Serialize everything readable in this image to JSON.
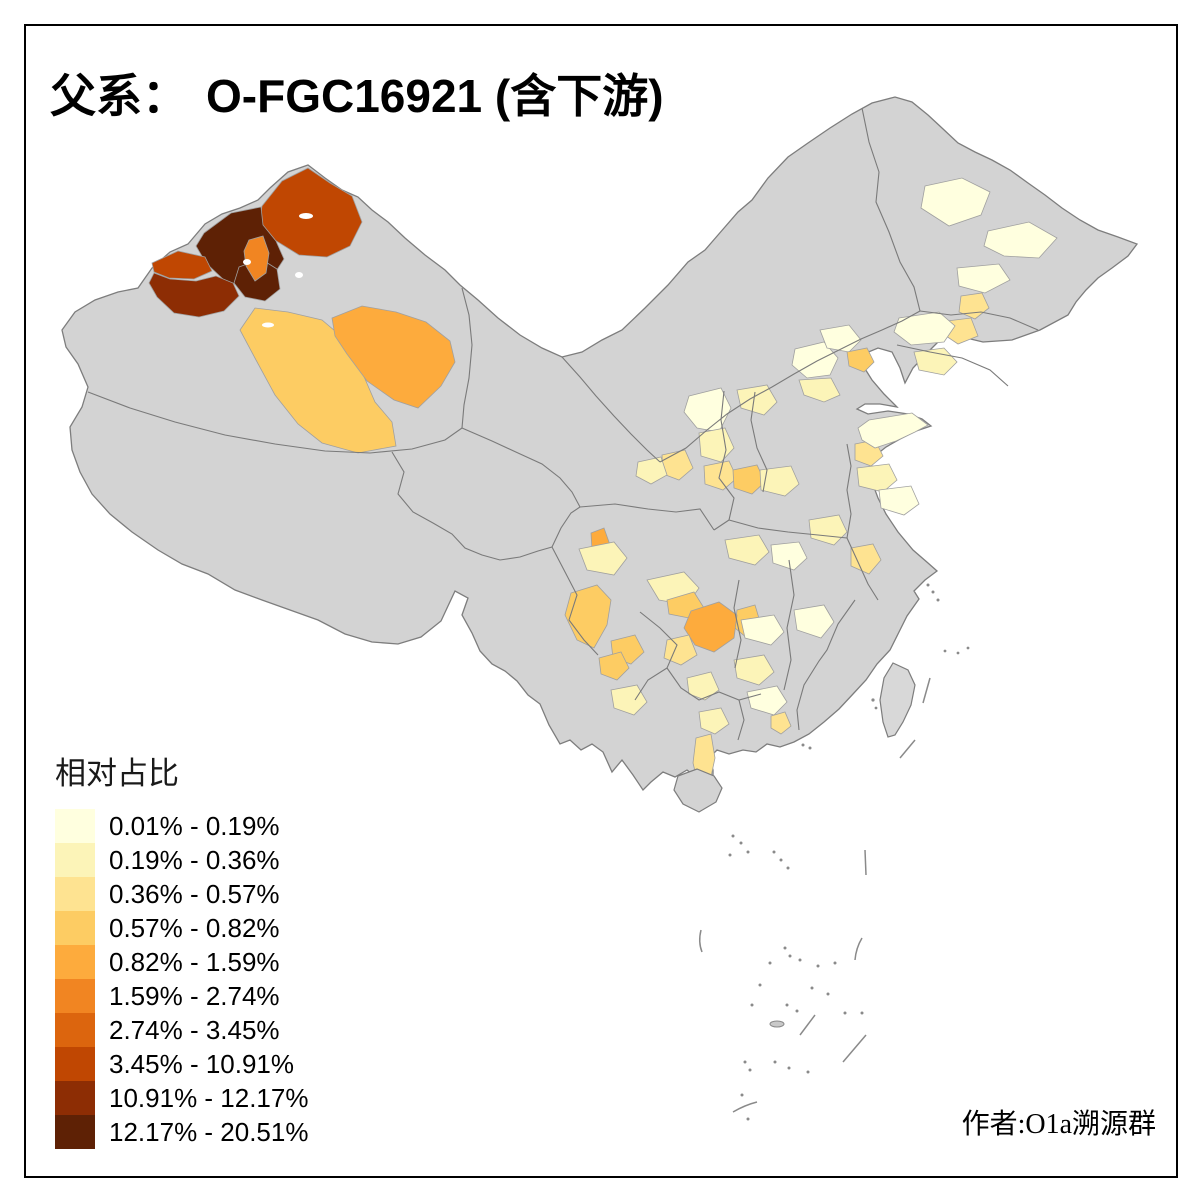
{
  "title": {
    "prefix": "父系：",
    "main": "O-FGC16921 (含下游)"
  },
  "legend": {
    "title": "相对占比",
    "bins": [
      {
        "label": "0.01% - 0.19%",
        "color": "#FFFFDF"
      },
      {
        "label": "0.19% - 0.36%",
        "color": "#FCF4B8"
      },
      {
        "label": "0.36% - 0.57%",
        "color": "#FEE391"
      },
      {
        "label": "0.57% - 0.82%",
        "color": "#FDCC63"
      },
      {
        "label": "0.82% - 1.59%",
        "color": "#FDAB3D"
      },
      {
        "label": "1.59% - 2.74%",
        "color": "#F18522"
      },
      {
        "label": "2.74% - 3.45%",
        "color": "#DC650E"
      },
      {
        "label": "3.45% - 10.91%",
        "color": "#C04702"
      },
      {
        "label": "10.91% - 12.17%",
        "color": "#8D2D04"
      },
      {
        "label": "12.17% - 20.51%",
        "color": "#5E2105"
      }
    ]
  },
  "attribution": "作者:O1a溯源群",
  "map": {
    "background": "#ffffff",
    "land_fill": "#d3d3d3",
    "island_fill": "#d8d8d8",
    "border_color": "#7d7d7d",
    "frame_color": "#000000",
    "lake_fill": "#ffffff",
    "regions": [
      {
        "id": "xj-bayingolin",
        "bin": 3
      },
      {
        "id": "xj-hami",
        "bin": 4
      },
      {
        "id": "xj-altay",
        "bin": 7
      },
      {
        "id": "xj-tacheng",
        "bin": 9
      },
      {
        "id": "xj-urumqi",
        "bin": 9
      },
      {
        "id": "xj-shihezi",
        "bin": 5
      },
      {
        "id": "xj-bole",
        "bin": 7
      },
      {
        "id": "xj-ili",
        "bin": 8
      },
      {
        "id": "hlj-nenjiang",
        "bin": 0
      },
      {
        "id": "hlj-hegang",
        "bin": 0
      },
      {
        "id": "hlj-harbin",
        "bin": 0
      },
      {
        "id": "jl-a",
        "bin": 2
      },
      {
        "id": "jl-b",
        "bin": 2
      },
      {
        "id": "jl-c",
        "bin": 0
      },
      {
        "id": "ln-a",
        "bin": 1
      },
      {
        "id": "beijing",
        "bin": 0
      },
      {
        "id": "chengde",
        "bin": 0
      },
      {
        "id": "tangshan",
        "bin": 3
      },
      {
        "id": "hebei-south",
        "bin": 1
      },
      {
        "id": "shanxi-north",
        "bin": 1
      },
      {
        "id": "shanxi-mid",
        "bin": 0
      },
      {
        "id": "shaanxi-north",
        "bin": 1
      },
      {
        "id": "ningxia",
        "bin": 2
      },
      {
        "id": "gansu-lanzhou",
        "bin": 1
      },
      {
        "id": "shaanxi-xian",
        "bin": 2
      },
      {
        "id": "henan-luoyang",
        "bin": 3
      },
      {
        "id": "henan-east",
        "bin": 1
      },
      {
        "id": "shandong-west",
        "bin": 2
      },
      {
        "id": "shandong-mid",
        "bin": 0
      },
      {
        "id": "shandong-south",
        "bin": 1
      },
      {
        "id": "jiangsu-north",
        "bin": 0
      },
      {
        "id": "jiangsu-mid",
        "bin": 2
      },
      {
        "id": "anhui-hefei",
        "bin": 1
      },
      {
        "id": "hubei-a",
        "bin": 1
      },
      {
        "id": "hubei-b",
        "bin": 0
      },
      {
        "id": "sichuan-mianyang",
        "bin": 4
      },
      {
        "id": "sichuan-chengdu",
        "bin": 1
      },
      {
        "id": "sichuan-yaan",
        "bin": 3
      },
      {
        "id": "sichuan-yibin",
        "bin": 3
      },
      {
        "id": "chongqing",
        "bin": 1
      },
      {
        "id": "guizhou-anshun",
        "bin": 4
      },
      {
        "id": "guizhou-west",
        "bin": 3
      },
      {
        "id": "guizhou-east",
        "bin": 3
      },
      {
        "id": "guizhou-sw",
        "bin": 2
      },
      {
        "id": "hunan-a",
        "bin": 0
      },
      {
        "id": "hunan-b",
        "bin": 1
      },
      {
        "id": "jiangxi-a",
        "bin": 0
      },
      {
        "id": "yunnan-qujing",
        "bin": 3
      },
      {
        "id": "yunnan-honghe",
        "bin": 1
      },
      {
        "id": "guangxi-north",
        "bin": 1
      },
      {
        "id": "guangxi-mid",
        "bin": 1
      },
      {
        "id": "zhanjiang",
        "bin": 2
      },
      {
        "id": "guangdong-a",
        "bin": 0
      },
      {
        "id": "guangdong-b",
        "bin": 2
      }
    ]
  }
}
